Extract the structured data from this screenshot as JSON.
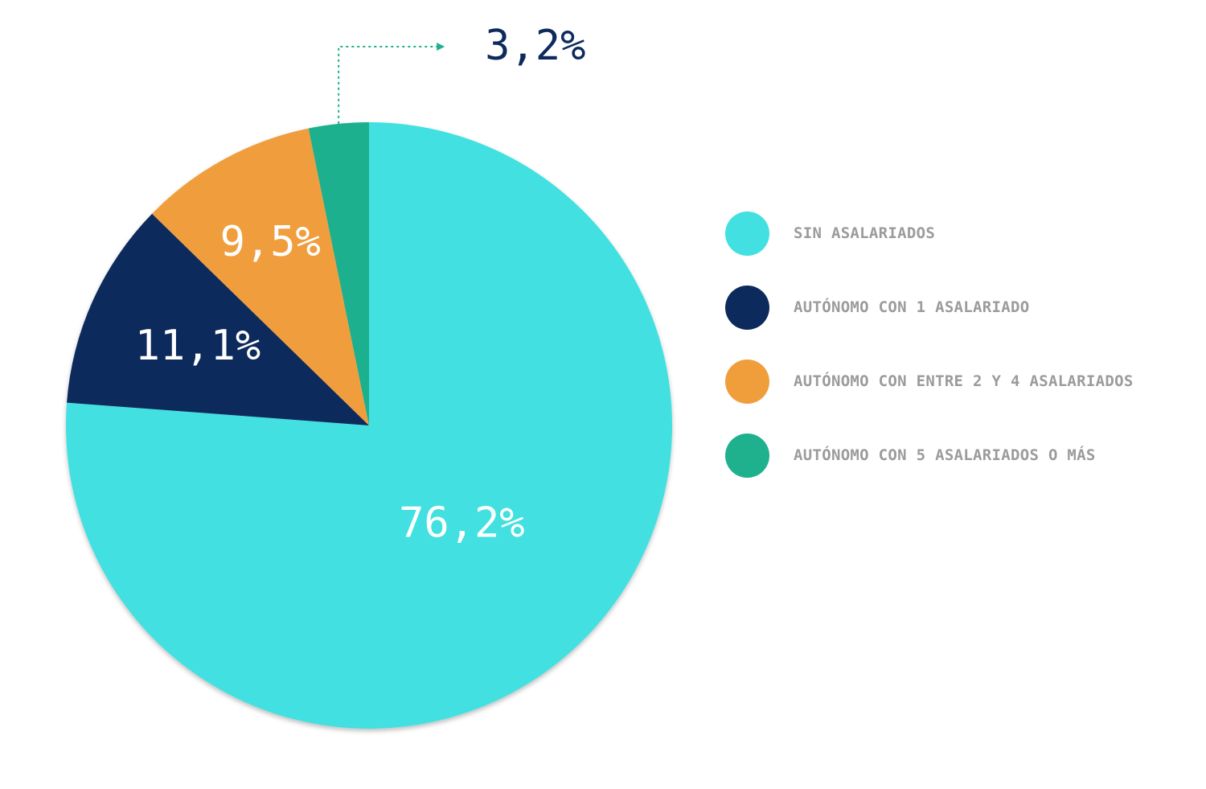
{
  "chart_data": {
    "type": "pie",
    "title": "",
    "slices": [
      {
        "label": "SIN ASALARIADOS",
        "value": 76.2,
        "display": "76,2%",
        "color": "#42e0e0"
      },
      {
        "label": "AUTÓNOMO CON 1 ASALARIADO",
        "value": 11.1,
        "display": "11,1%",
        "color": "#0d2a5c"
      },
      {
        "label": "AUTÓNOMO CON ENTRE 2 Y 4 ASALARIADOS",
        "value": 9.5,
        "display": "9,5%",
        "color": "#f09e3c"
      },
      {
        "label": "AUTÓNOMO CON 5 ASALARIADOS O MÁS",
        "value": 3.2,
        "display": "3,2%",
        "color": "#1fb08e"
      }
    ],
    "start_angle": "12 o'clock",
    "direction": "clockwise",
    "legend_placement": "right"
  }
}
